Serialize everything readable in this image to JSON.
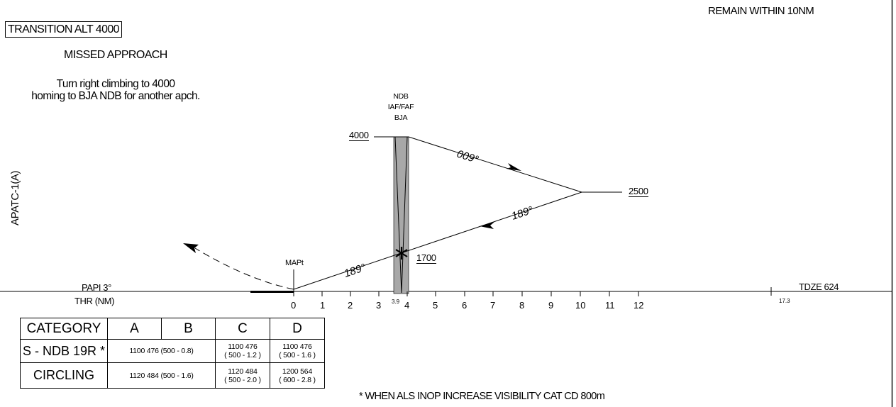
{
  "header": {
    "transition_alt": "TRANSITION ALT 4000",
    "remain_within": "REMAIN WITHIN 10NM",
    "missed_approach_title": "MISSED APPROACH",
    "missed_approach_line1": "Turn right climbing to 4000",
    "missed_approach_line2": "homing to BJA NDB for another apch.",
    "side_label": "APATC-1(A)"
  },
  "profile": {
    "fix_type": "NDB",
    "fix_role": "IAF/FAF",
    "fix_ident": "BJA",
    "alt_initial": "4000",
    "alt_turn": "2500",
    "alt_final": "1700",
    "outbound_course": "009°",
    "inbound_course": "189°",
    "final_course": "189°",
    "mapt_label": "MAPt",
    "papi": "PAPI 3°",
    "thr": "THR (NM)",
    "tdze": "TDZE 624",
    "runway_length": "17.3",
    "fix_distance": "3.9"
  },
  "distance_scale": [
    "0",
    "1",
    "2",
    "3",
    "4",
    "5",
    "6",
    "7",
    "8",
    "9",
    "10",
    "11",
    "12"
  ],
  "minima": {
    "headers": {
      "category": "CATEGORY",
      "a": "A",
      "b": "B",
      "c": "C",
      "d": "D"
    },
    "rows": [
      {
        "label": "S - NDB 19R *",
        "ab": "1100  476  (500 - 0.8)",
        "c1": "1100   476",
        "c2": "( 500 - 1.2 )",
        "d1": "1100   476",
        "d2": "( 500 - 1.6 )"
      },
      {
        "label": "CIRCLING",
        "ab": "1120  484  (500 - 1.6)",
        "c1": "1120   484",
        "c2": "( 500 - 2.0 )",
        "d1": "1200   564",
        "d2": "( 600 - 2.8 )"
      }
    ]
  },
  "footnote": "* WHEN ALS INOP INCREASE VISIBILITY CAT CD 800m"
}
